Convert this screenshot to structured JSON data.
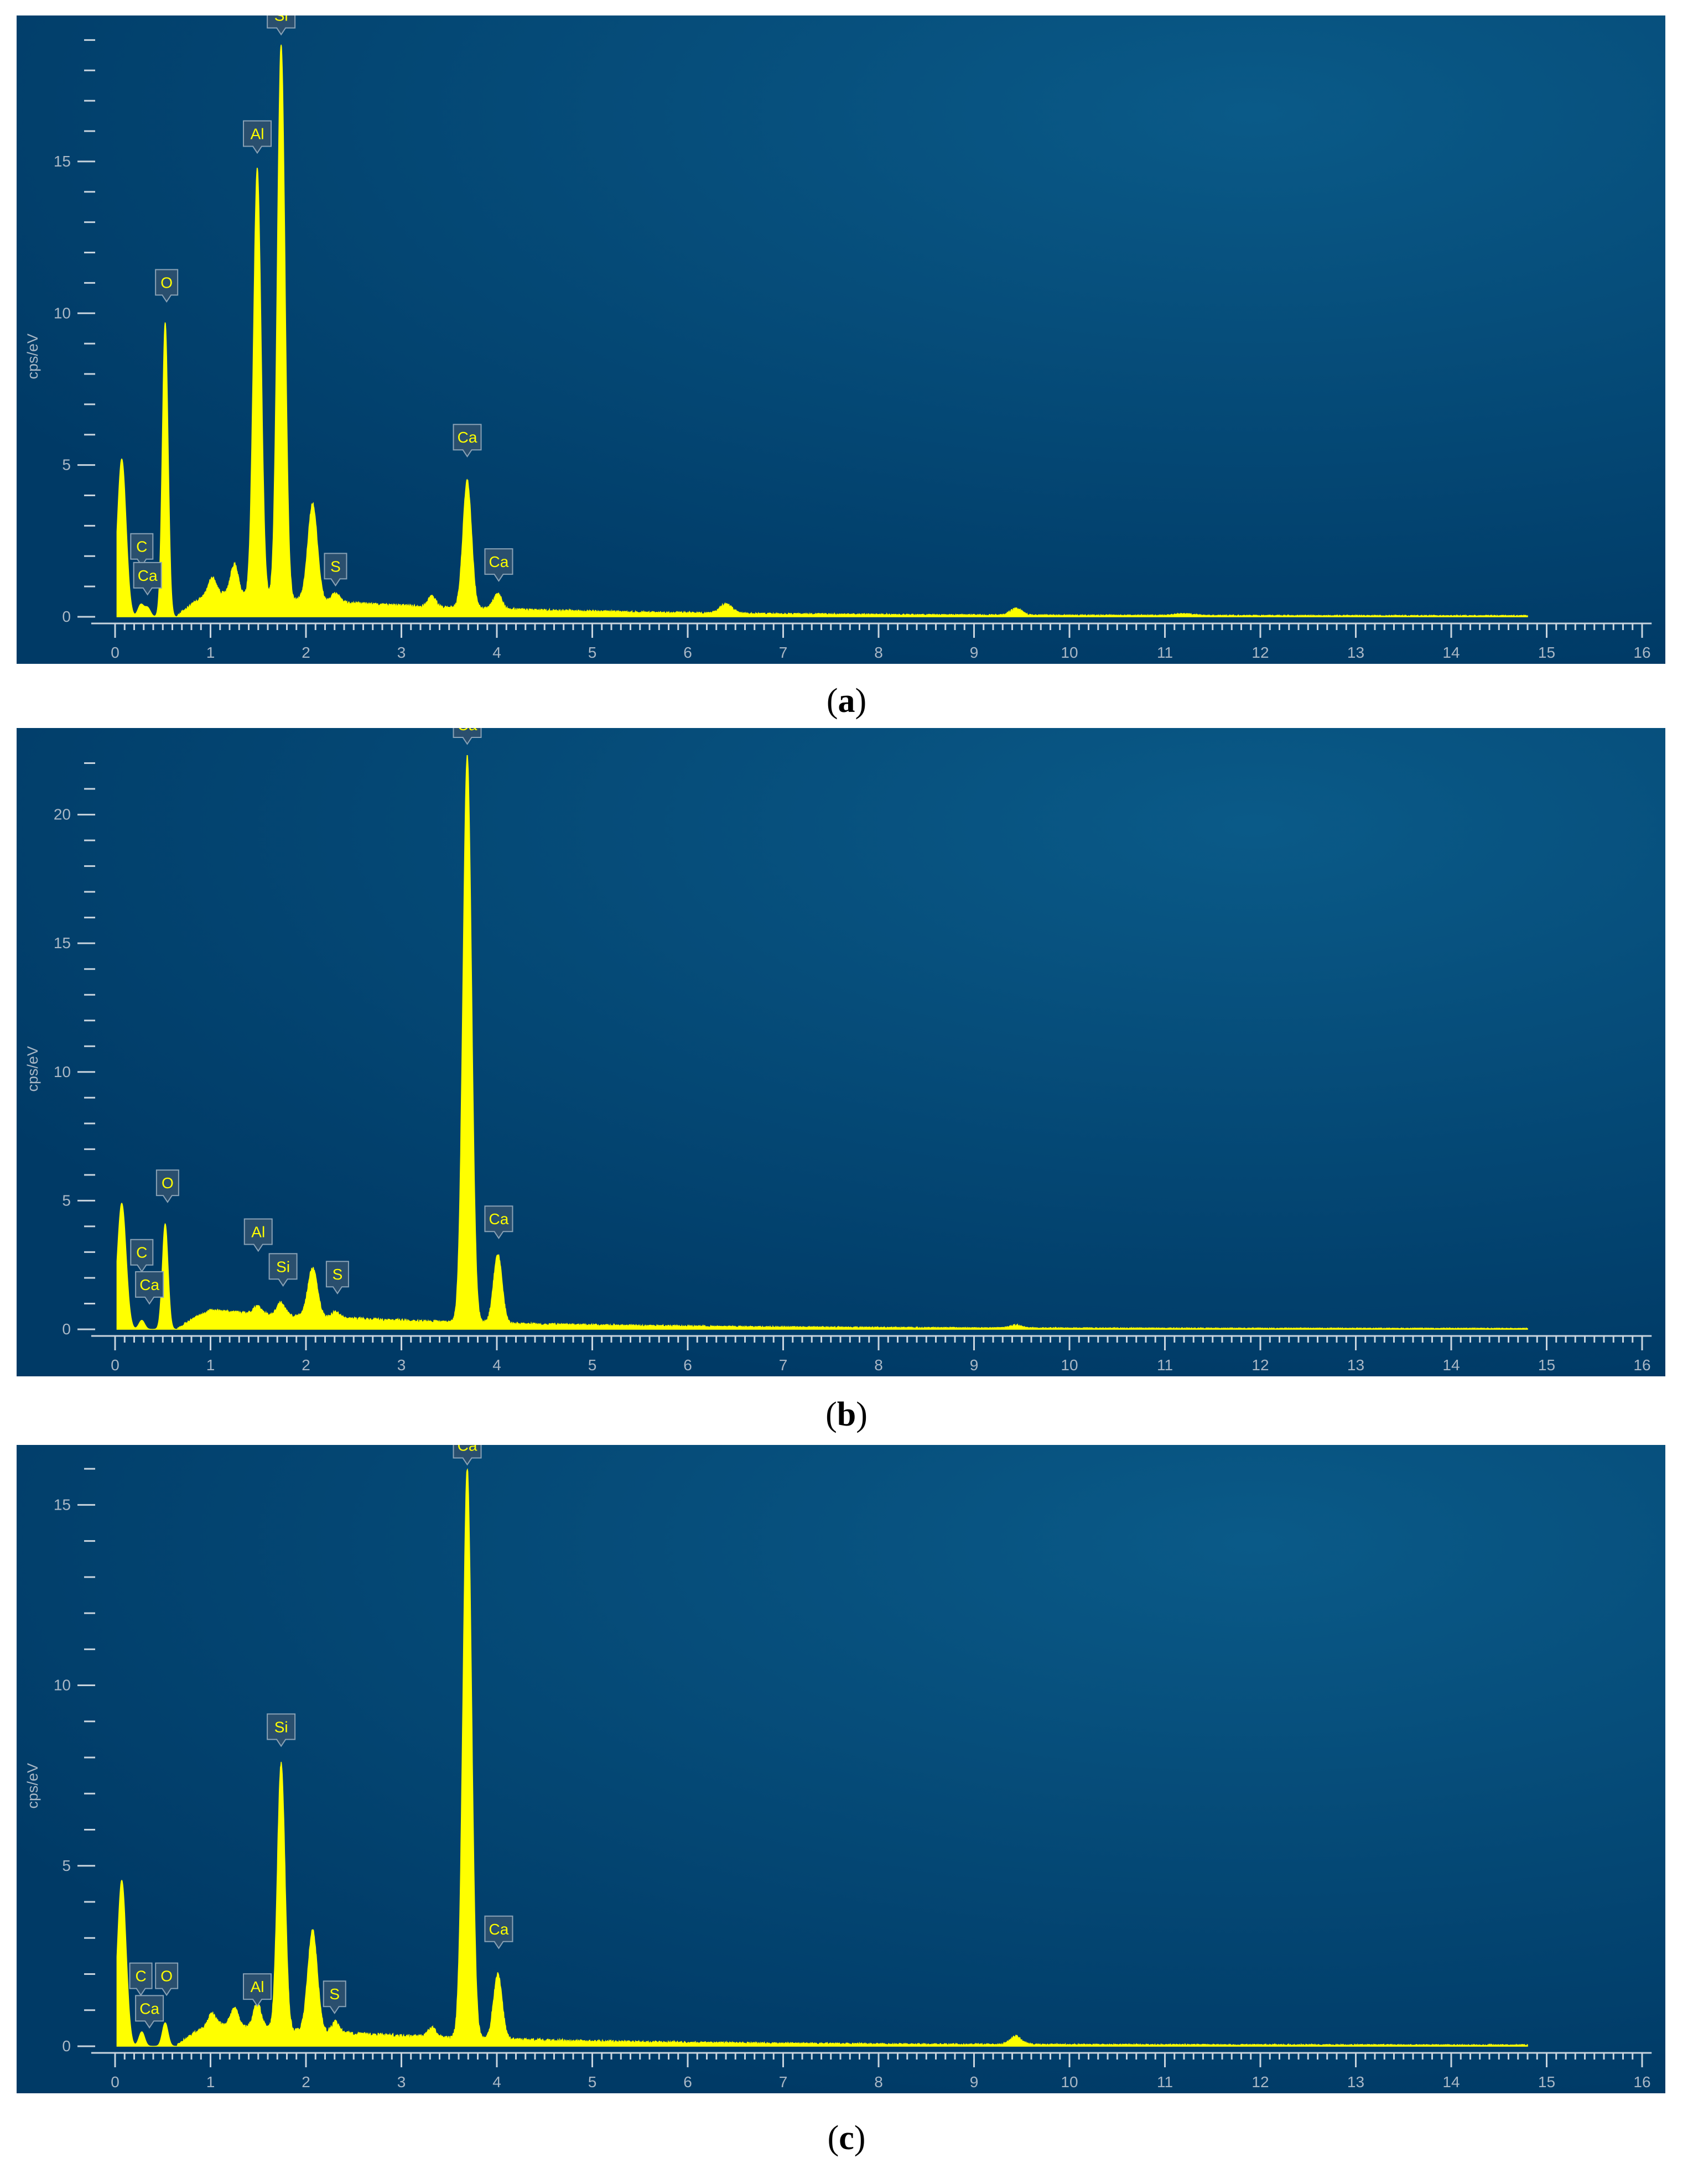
{
  "figure": {
    "panels": [
      {
        "caption_letter": "a"
      },
      {
        "caption_letter": "b"
      },
      {
        "caption_letter": "c"
      }
    ]
  },
  "colors": {
    "background_dark": "#003a66",
    "background_light": "#0a5a88",
    "spectrum": "#ffff00",
    "axis": "#c8d4de"
  },
  "chart_data": [
    {
      "type": "area",
      "ylabel": "cps/eV",
      "xlim": [
        0,
        16
      ],
      "ylim": [
        0,
        19.5
      ],
      "yticks": [
        0,
        5,
        10,
        15
      ],
      "xticks": [
        0,
        1,
        2,
        3,
        4,
        5,
        6,
        7,
        8,
        9,
        10,
        11,
        12,
        13,
        14,
        15,
        16
      ],
      "peaks": [
        {
          "x": 0.07,
          "h": 5.2,
          "w": 0.045
        },
        {
          "x": 0.27,
          "h": 0.4,
          "w": 0.03
        },
        {
          "x": 0.34,
          "h": 0.3,
          "w": 0.03
        },
        {
          "x": 0.525,
          "h": 9.7,
          "w": 0.03
        },
        {
          "x": 1.02,
          "h": 0.5,
          "w": 0.04
        },
        {
          "x": 1.25,
          "h": 1.0,
          "w": 0.04
        },
        {
          "x": 1.49,
          "h": 14.1,
          "w": 0.04
        },
        {
          "x": 1.74,
          "h": 18.3,
          "w": 0.04
        },
        {
          "x": 2.07,
          "h": 3.2,
          "w": 0.05
        },
        {
          "x": 2.31,
          "h": 0.3,
          "w": 0.04
        },
        {
          "x": 3.32,
          "h": 0.35,
          "w": 0.04
        },
        {
          "x": 3.69,
          "h": 4.2,
          "w": 0.045
        },
        {
          "x": 4.01,
          "h": 0.5,
          "w": 0.045
        },
        {
          "x": 6.4,
          "h": 0.3,
          "w": 0.06
        },
        {
          "x": 9.44,
          "h": 0.2,
          "w": 0.06
        },
        {
          "x": 11.2,
          "h": 0.05,
          "w": 0.1
        }
      ],
      "labels": [
        {
          "text": "C",
          "x": 0.28,
          "y": 1.9
        },
        {
          "text": "Ca",
          "x": 0.34,
          "y": 0.95
        },
        {
          "text": "O",
          "x": 0.54,
          "y": 10.6
        },
        {
          "text": "Al",
          "x": 1.49,
          "y": 15.5
        },
        {
          "text": "Si",
          "x": 1.74,
          "y": 19.4
        },
        {
          "text": "S",
          "x": 2.31,
          "y": 1.25
        },
        {
          "text": "Ca",
          "x": 3.69,
          "y": 5.5
        },
        {
          "text": "Ca",
          "x": 4.02,
          "y": 1.4
        }
      ]
    },
    {
      "type": "area",
      "ylabel": "cps/eV",
      "xlim": [
        0,
        16
      ],
      "ylim": [
        0,
        23
      ],
      "yticks": [
        0,
        5,
        10,
        15,
        20
      ],
      "xticks": [
        0,
        1,
        2,
        3,
        4,
        5,
        6,
        7,
        8,
        9,
        10,
        11,
        12,
        13,
        14,
        15,
        16
      ],
      "peaks": [
        {
          "x": 0.07,
          "h": 4.9,
          "w": 0.045
        },
        {
          "x": 0.28,
          "h": 0.35,
          "w": 0.03
        },
        {
          "x": 0.525,
          "h": 4.1,
          "w": 0.03
        },
        {
          "x": 1.49,
          "h": 0.3,
          "w": 0.04
        },
        {
          "x": 1.74,
          "h": 0.5,
          "w": 0.04
        },
        {
          "x": 2.07,
          "h": 1.9,
          "w": 0.05
        },
        {
          "x": 2.31,
          "h": 0.25,
          "w": 0.04
        },
        {
          "x": 3.69,
          "h": 22.0,
          "w": 0.045
        },
        {
          "x": 4.01,
          "h": 2.7,
          "w": 0.045
        },
        {
          "x": 9.44,
          "h": 0.1,
          "w": 0.06
        }
      ],
      "labels": [
        {
          "text": "C",
          "x": 0.28,
          "y": 2.5
        },
        {
          "text": "Ca",
          "x": 0.36,
          "y": 1.25
        },
        {
          "text": "O",
          "x": 0.55,
          "y": 5.2
        },
        {
          "text": "Al",
          "x": 1.5,
          "y": 3.3
        },
        {
          "text": "Si",
          "x": 1.76,
          "y": 1.95
        },
        {
          "text": "S",
          "x": 2.33,
          "y": 1.65
        },
        {
          "text": "Ca",
          "x": 3.69,
          "y": 23.0
        },
        {
          "text": "Ca",
          "x": 4.02,
          "y": 3.8
        }
      ]
    },
    {
      "type": "area",
      "ylabel": "cps/eV",
      "xlim": [
        0,
        16
      ],
      "ylim": [
        0,
        16.4
      ],
      "yticks": [
        0,
        5,
        10,
        15
      ],
      "xticks": [
        0,
        1,
        2,
        3,
        4,
        5,
        6,
        7,
        8,
        9,
        10,
        11,
        12,
        13,
        14,
        15,
        16
      ],
      "peaks": [
        {
          "x": 0.07,
          "h": 4.6,
          "w": 0.045
        },
        {
          "x": 0.28,
          "h": 0.4,
          "w": 0.03
        },
        {
          "x": 0.525,
          "h": 0.65,
          "w": 0.03
        },
        {
          "x": 1.02,
          "h": 0.3,
          "w": 0.04
        },
        {
          "x": 1.25,
          "h": 0.5,
          "w": 0.04
        },
        {
          "x": 1.49,
          "h": 0.7,
          "w": 0.04
        },
        {
          "x": 1.74,
          "h": 7.4,
          "w": 0.04
        },
        {
          "x": 2.07,
          "h": 2.8,
          "w": 0.05
        },
        {
          "x": 2.31,
          "h": 0.3,
          "w": 0.04
        },
        {
          "x": 3.32,
          "h": 0.25,
          "w": 0.04
        },
        {
          "x": 3.69,
          "h": 15.8,
          "w": 0.045
        },
        {
          "x": 4.01,
          "h": 1.8,
          "w": 0.045
        },
        {
          "x": 9.44,
          "h": 0.2,
          "w": 0.06
        }
      ],
      "labels": [
        {
          "text": "C",
          "x": 0.27,
          "y": 1.6
        },
        {
          "text": "Ca",
          "x": 0.36,
          "y": 0.7
        },
        {
          "text": "O",
          "x": 0.54,
          "y": 1.6
        },
        {
          "text": "Al",
          "x": 1.49,
          "y": 1.3
        },
        {
          "text": "Si",
          "x": 1.74,
          "y": 8.5
        },
        {
          "text": "S",
          "x": 2.3,
          "y": 1.1
        },
        {
          "text": "Ca",
          "x": 3.69,
          "y": 16.3
        },
        {
          "text": "Ca",
          "x": 4.02,
          "y": 2.9
        }
      ]
    }
  ]
}
